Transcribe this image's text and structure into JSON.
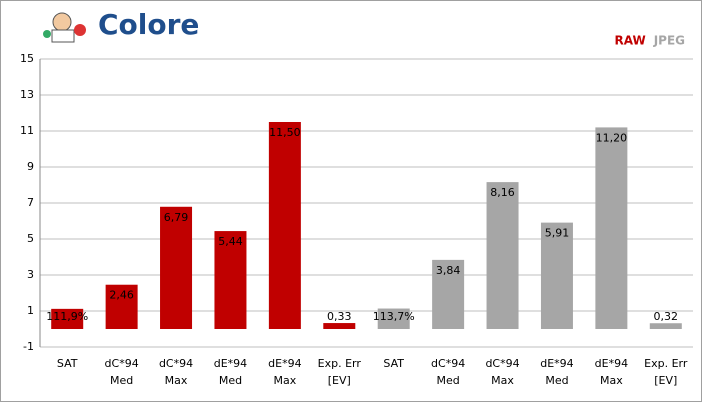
{
  "chart_data": {
    "type": "bar",
    "title": "Colore",
    "categories": [
      "SAT",
      "dC*94\nMed",
      "dC*94\nMax",
      "dE*94\nMed",
      "dE*94\nMax",
      "Exp. Err\n[EV]",
      "SAT",
      "dC*94\nMed",
      "dC*94\nMax",
      "dE*94\nMed",
      "dE*94\nMax",
      "Exp. Err\n[EV]"
    ],
    "series": [
      {
        "name": "RAW",
        "color": "#c00000",
        "values": [
          1.119,
          2.46,
          6.79,
          5.44,
          11.5,
          0.33,
          null,
          null,
          null,
          null,
          null,
          null
        ],
        "value_labels": [
          "111,9%",
          "2,46",
          "6,79",
          "5,44",
          "11,50",
          "0,33",
          null,
          null,
          null,
          null,
          null,
          null
        ]
      },
      {
        "name": "JPEG",
        "color": "#a6a6a6",
        "values": [
          null,
          null,
          null,
          null,
          null,
          null,
          1.137,
          3.84,
          8.16,
          5.91,
          11.2,
          0.32
        ],
        "value_labels": [
          null,
          null,
          null,
          null,
          null,
          null,
          "113,7%",
          "3,84",
          "8,16",
          "5,91",
          "11,20",
          "0,32"
        ]
      }
    ],
    "ylim": [
      -1,
      15
    ],
    "yticks": [
      -1,
      1,
      3,
      5,
      7,
      9,
      11,
      13,
      15
    ],
    "grid": true,
    "legend": "top-right"
  }
}
